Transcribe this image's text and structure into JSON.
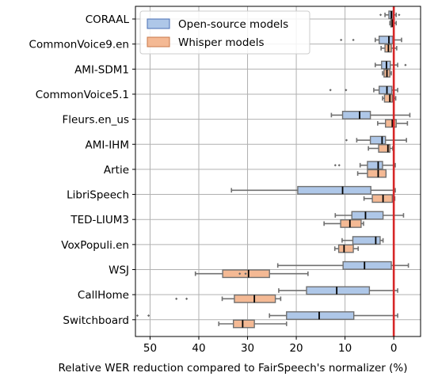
{
  "chart_data": {
    "type": "box",
    "orientation": "horizontal",
    "xlabel": "Relative WER reduction compared to FairSpeech's normalizer (%)",
    "xlim_reversed": [
      53,
      -5.5
    ],
    "xticks": [
      50,
      40,
      30,
      20,
      10,
      0
    ],
    "grid": true,
    "legend": {
      "placement": "top-left",
      "entries": [
        {
          "name": "Open-source models",
          "color": "#aec7e8",
          "edge": "#4a6fb5"
        },
        {
          "name": "Whisper models",
          "color": "#f4b994",
          "edge": "#c8784a"
        }
      ]
    },
    "reference_line": {
      "x": 0,
      "color": "#d62728"
    },
    "categories": [
      "CORAAL",
      "CommonVoice9.en",
      "AMI-SDM1",
      "CommonVoice5.1",
      "Fleurs.en_us",
      "AMI-IHM",
      "Artie",
      "LibriSpeech",
      "TED-LIUM3",
      "VoxPopuli.en",
      "WSJ",
      "CallHome",
      "Switchboard"
    ],
    "series": [
      {
        "name": "Open-source models",
        "boxes": [
          {
            "whislo": -0.5,
            "q1": 0.2,
            "med": 0.5,
            "q3": 1.0,
            "whishi": 1.8,
            "fliers": [
              2.7,
              -1.1
            ]
          },
          {
            "whislo": -1.6,
            "q1": 0.2,
            "med": 1.0,
            "q3": 3.0,
            "whishi": 3.8,
            "fliers": [
              10.8,
              8.3
            ]
          },
          {
            "whislo": -0.8,
            "q1": 0.7,
            "med": 1.5,
            "q3": 2.5,
            "whishi": 3.8,
            "fliers": [
              -2.4
            ]
          },
          {
            "whislo": -0.8,
            "q1": 0.4,
            "med": 1.4,
            "q3": 3.0,
            "whishi": 4.1,
            "fliers": [
              13.0,
              9.8
            ]
          },
          {
            "whislo": -3.3,
            "q1": 4.8,
            "med": 7.0,
            "q3": 10.5,
            "whishi": 12.8,
            "fliers": []
          },
          {
            "whislo": -2.6,
            "q1": 1.7,
            "med": 2.4,
            "q3": 4.8,
            "whishi": 7.6,
            "fliers": [
              9.7
            ]
          },
          {
            "whislo": -0.3,
            "q1": 2.3,
            "med": 3.2,
            "q3": 5.4,
            "whishi": 6.9,
            "fliers": [
              12.0,
              11.2
            ]
          },
          {
            "whislo": -0.3,
            "q1": 4.7,
            "med": 10.5,
            "q3": 19.7,
            "whishi": 33.3,
            "fliers": []
          },
          {
            "whislo": -2.0,
            "q1": 2.2,
            "med": 5.8,
            "q3": 8.6,
            "whishi": 12.0,
            "fliers": []
          },
          {
            "whislo": 2.2,
            "q1": 2.8,
            "med": 3.7,
            "q3": 8.4,
            "whishi": 10.6,
            "fliers": []
          },
          {
            "whislo": -3.0,
            "q1": 0.5,
            "med": 6.0,
            "q3": 10.4,
            "whishi": 23.8,
            "fliers": []
          },
          {
            "whislo": -0.8,
            "q1": 5.0,
            "med": 11.7,
            "q3": 17.9,
            "whishi": 23.6,
            "fliers": []
          },
          {
            "whislo": -0.8,
            "q1": 8.2,
            "med": 15.3,
            "q3": 22.0,
            "whishi": 25.5,
            "fliers": [
              50.3,
              52.6
            ]
          }
        ]
      },
      {
        "name": "Whisper models",
        "boxes": [
          {
            "whislo": -0.5,
            "q1": 0.0,
            "med": 0.3,
            "q3": 0.6,
            "whishi": 0.8,
            "fliers": []
          },
          {
            "whislo": -0.6,
            "q1": 0.5,
            "med": 1.1,
            "q3": 1.8,
            "whishi": 2.6,
            "fliers": []
          },
          {
            "whislo": 0.5,
            "q1": 0.8,
            "med": 1.4,
            "q3": 2.0,
            "whishi": 2.3,
            "fliers": []
          },
          {
            "whislo": -0.4,
            "q1": 0.3,
            "med": 0.8,
            "q3": 1.9,
            "whishi": 2.3,
            "fliers": []
          },
          {
            "whislo": -2.8,
            "q1": -0.5,
            "med": 0.3,
            "q3": 1.7,
            "whishi": 3.3,
            "fliers": []
          },
          {
            "whislo": 0.2,
            "q1": 0.8,
            "med": 1.2,
            "q3": 3.1,
            "whishi": 5.2,
            "fliers": []
          },
          {
            "whislo": 1.6,
            "q1": 1.6,
            "med": 3.2,
            "q3": 5.4,
            "whishi": 7.4,
            "fliers": []
          },
          {
            "whislo": -0.2,
            "q1": 0.3,
            "med": 2.2,
            "q3": 4.4,
            "whishi": 6.1,
            "fliers": []
          },
          {
            "whislo": 6.2,
            "q1": 6.7,
            "med": 9.0,
            "q3": 10.9,
            "whishi": 14.3,
            "fliers": []
          },
          {
            "whislo": 7.3,
            "q1": 8.3,
            "med": 10.2,
            "q3": 11.3,
            "whishi": 12.1,
            "fliers": []
          },
          {
            "whislo": 17.6,
            "q1": 25.5,
            "med": 29.8,
            "q3": 35.1,
            "whishi": 40.7,
            "fliers": [
              30.4,
              31.6
            ]
          },
          {
            "whislo": 23.2,
            "q1": 24.3,
            "med": 28.6,
            "q3": 32.7,
            "whishi": 35.2,
            "fliers": [
              42.5,
              44.6
            ]
          },
          {
            "whislo": 22.0,
            "q1": 28.6,
            "med": 31.0,
            "q3": 32.9,
            "whishi": 35.9,
            "fliers": []
          }
        ]
      }
    ]
  }
}
